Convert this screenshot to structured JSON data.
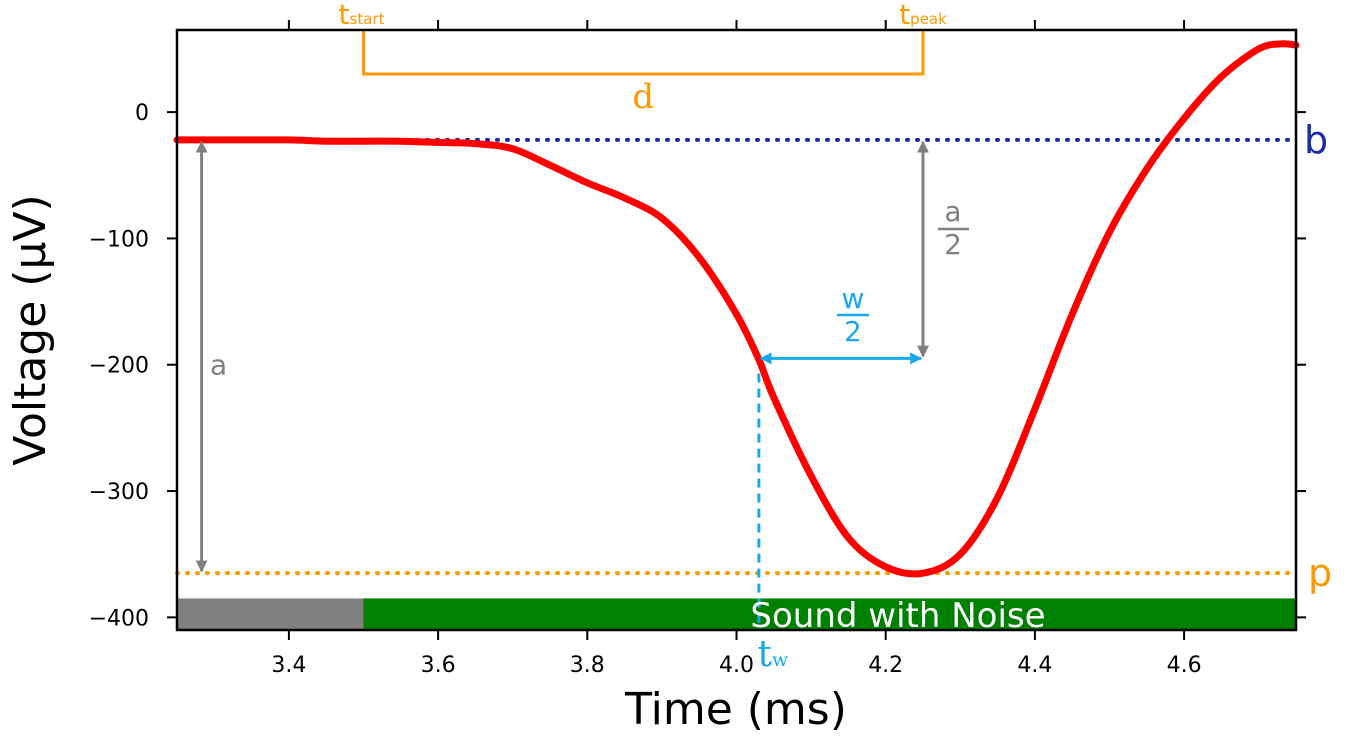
{
  "chart_data": {
    "type": "line",
    "xlabel": "Time (ms)",
    "ylabel": "Voltage (µV)",
    "xlim": [
      3.25,
      4.75
    ],
    "ylim": [
      -410,
      65
    ],
    "x_ticks": [
      3.4,
      3.6,
      3.8,
      4.0,
      4.2,
      4.4,
      4.6
    ],
    "x_tick_labels": [
      "3.4",
      "3.6",
      "3.8",
      "4.0",
      "4.2",
      "4.4",
      "4.6"
    ],
    "top_ticks": [
      3.4,
      3.6,
      3.8,
      4.0,
      4.2,
      4.4,
      4.6
    ],
    "y_ticks": [
      0,
      -100,
      -200,
      -300,
      -400
    ],
    "y_tick_labels": [
      "0",
      "−100",
      "−200",
      "−300",
      "−400"
    ],
    "series": [
      {
        "name": "waveform",
        "color": "#ff0000",
        "x": [
          3.25,
          3.3,
          3.35,
          3.4,
          3.45,
          3.5,
          3.55,
          3.6,
          3.65,
          3.7,
          3.75,
          3.8,
          3.85,
          3.9,
          3.95,
          4.0,
          4.03,
          4.05,
          4.1,
          4.15,
          4.2,
          4.25,
          4.3,
          4.35,
          4.4,
          4.45,
          4.5,
          4.55,
          4.6,
          4.65,
          4.7,
          4.73,
          4.75
        ],
        "y": [
          -22,
          -22,
          -22,
          -22,
          -23,
          -23,
          -23,
          -24,
          -25,
          -29,
          -42,
          -56,
          -68,
          -84,
          -115,
          -160,
          -196,
          -226,
          -288,
          -337,
          -360,
          -365,
          -350,
          -305,
          -235,
          -160,
          -95,
          -45,
          -5,
          28,
          50,
          54,
          53
        ]
      }
    ],
    "baseline": {
      "label": "b",
      "value": -22,
      "color": "#1c2ca8"
    },
    "peak_line": {
      "label": "p",
      "value": -365,
      "color": "#ff9900"
    },
    "amplitude": {
      "label": "a",
      "x": 3.283,
      "from": -22,
      "to": -365,
      "color": "#808080"
    },
    "half_amplitude": {
      "numerator": "a",
      "denominator": "2",
      "x": 4.25,
      "from": -22,
      "to": -195,
      "color": "#808080"
    },
    "half_width": {
      "numerator": "w",
      "denominator": "2",
      "y": -195,
      "from": 4.03,
      "to": 4.25,
      "color": "#1aa7ec"
    },
    "tw_marker": {
      "label": "t",
      "sub": "w",
      "x": 4.03,
      "from": -207,
      "to": -410,
      "color": "#1aa7ec"
    },
    "duration": {
      "label": "d",
      "start_label": "t",
      "start_sub": "start",
      "peak_label": "t",
      "peak_sub": "peak",
      "start": 3.5,
      "end": 4.25,
      "color": "#ff9900"
    },
    "stimulus_bar": {
      "y_from": -410,
      "y_to": -385,
      "segments": [
        {
          "name": "silence",
          "from": 3.25,
          "to": 3.5,
          "color": "#808080"
        },
        {
          "name": "sound",
          "from": 3.5,
          "to": 4.75,
          "color": "#008000"
        }
      ],
      "label": "Sound with Noise"
    }
  }
}
